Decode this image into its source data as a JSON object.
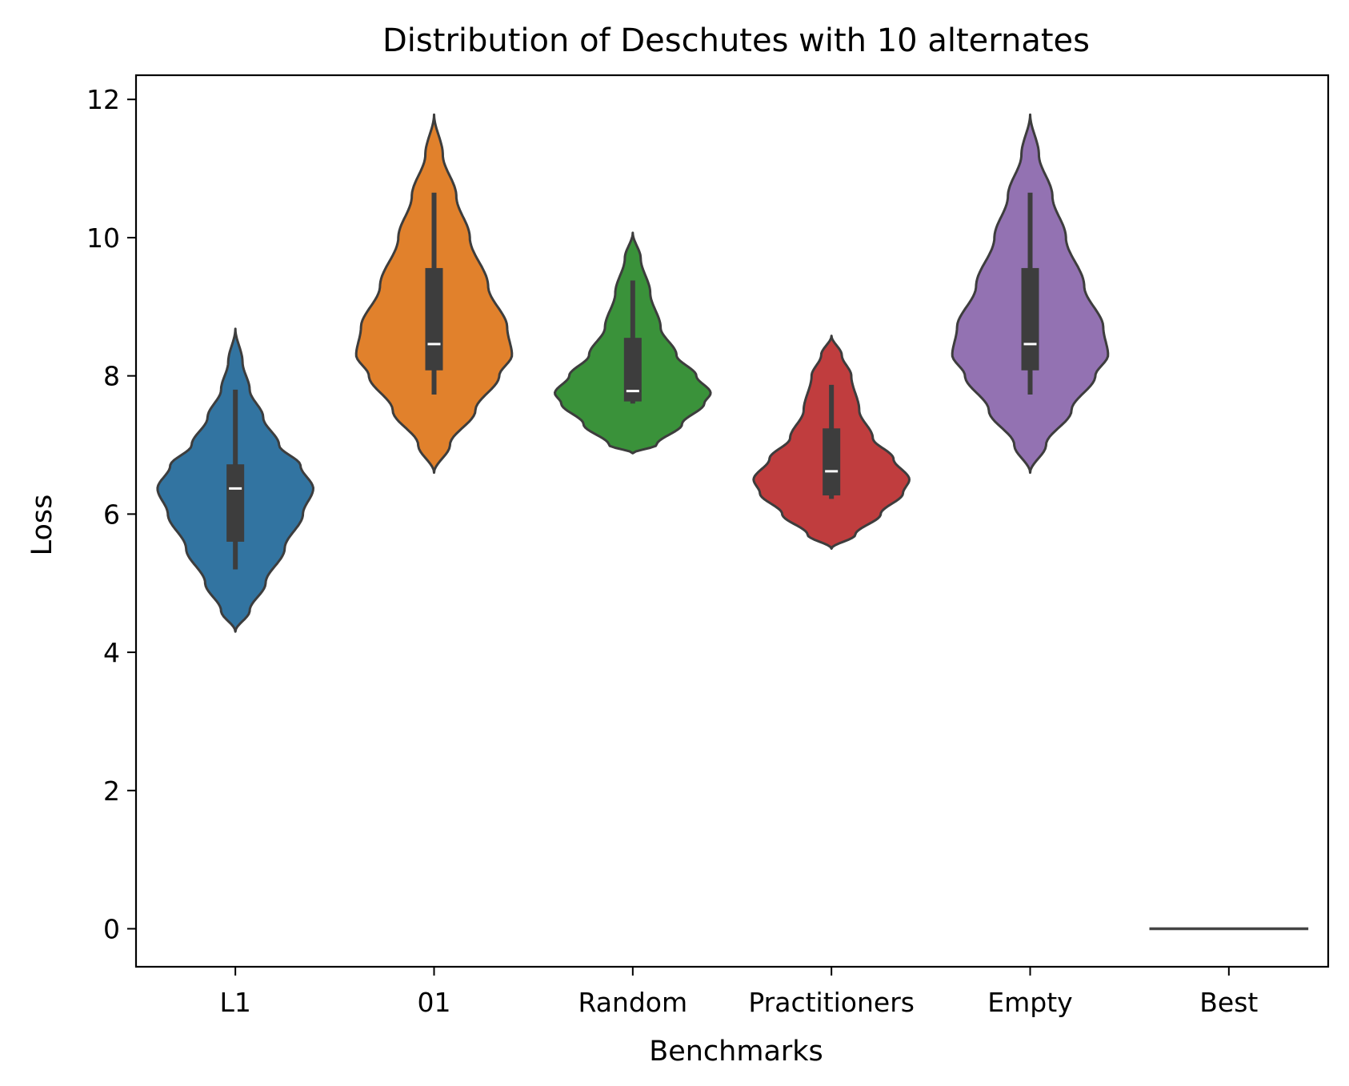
{
  "chart_data": {
    "type": "violin",
    "title": "Distribution of Deschutes with 10 alternates",
    "xlabel": "Benchmarks",
    "ylabel": "Loss",
    "ylim": [
      -0.55,
      12.35
    ],
    "yticks": [
      0,
      2,
      4,
      6,
      8,
      10,
      12
    ],
    "ytick_labels": [
      "0",
      "2",
      "4",
      "6",
      "8",
      "10",
      "12"
    ],
    "grid": false,
    "categories": [
      "L1",
      "01",
      "Random",
      "Practitioners",
      "Empty",
      "Best"
    ],
    "series": [
      {
        "category": "L1",
        "color": "#3274a1",
        "min": 5.2,
        "q1": 5.6,
        "median": 6.37,
        "q3": 6.72,
        "max": 7.8,
        "kde_range": [
          4.3,
          8.68
        ],
        "density": [
          [
            4.3,
            0.0
          ],
          [
            4.6,
            0.18
          ],
          [
            5.0,
            0.38
          ],
          [
            5.5,
            0.62
          ],
          [
            6.0,
            0.85
          ],
          [
            6.37,
            0.98
          ],
          [
            6.7,
            0.82
          ],
          [
            7.0,
            0.55
          ],
          [
            7.4,
            0.35
          ],
          [
            7.8,
            0.18
          ],
          [
            8.2,
            0.09
          ],
          [
            8.68,
            0.0
          ]
        ]
      },
      {
        "category": "01",
        "color": "#e1812c",
        "min": 7.73,
        "q1": 8.08,
        "median": 8.46,
        "q3": 9.56,
        "max": 10.65,
        "kde_range": [
          6.6,
          11.78
        ],
        "density": [
          [
            6.6,
            0.0
          ],
          [
            7.0,
            0.2
          ],
          [
            7.5,
            0.52
          ],
          [
            8.0,
            0.82
          ],
          [
            8.3,
            0.98
          ],
          [
            8.7,
            0.92
          ],
          [
            9.3,
            0.68
          ],
          [
            10.0,
            0.45
          ],
          [
            10.6,
            0.28
          ],
          [
            11.2,
            0.11
          ],
          [
            11.78,
            0.0
          ]
        ]
      },
      {
        "category": "Random",
        "color": "#3a923a",
        "min": 7.6,
        "q1": 7.63,
        "median": 7.78,
        "q3": 8.55,
        "max": 9.38,
        "kde_range": [
          6.88,
          10.07
        ],
        "density": [
          [
            6.88,
            0.0
          ],
          [
            7.0,
            0.3
          ],
          [
            7.3,
            0.62
          ],
          [
            7.6,
            0.9
          ],
          [
            7.75,
            0.98
          ],
          [
            8.0,
            0.8
          ],
          [
            8.3,
            0.55
          ],
          [
            8.7,
            0.35
          ],
          [
            9.2,
            0.22
          ],
          [
            9.7,
            0.1
          ],
          [
            10.07,
            0.0
          ]
        ]
      },
      {
        "category": "Practitioners",
        "color": "#c03d3e",
        "min": 6.22,
        "q1": 6.27,
        "median": 6.62,
        "q3": 7.24,
        "max": 7.87,
        "kde_range": [
          5.5,
          8.58
        ],
        "density": [
          [
            5.5,
            0.0
          ],
          [
            5.7,
            0.3
          ],
          [
            6.0,
            0.62
          ],
          [
            6.3,
            0.9
          ],
          [
            6.5,
            0.98
          ],
          [
            6.8,
            0.78
          ],
          [
            7.1,
            0.52
          ],
          [
            7.5,
            0.35
          ],
          [
            8.0,
            0.25
          ],
          [
            8.3,
            0.13
          ],
          [
            8.58,
            0.0
          ]
        ]
      },
      {
        "category": "Empty",
        "color": "#9372b2",
        "min": 7.73,
        "q1": 8.08,
        "median": 8.46,
        "q3": 9.56,
        "max": 10.65,
        "kde_range": [
          6.6,
          11.78
        ],
        "density": [
          [
            6.6,
            0.0
          ],
          [
            7.0,
            0.2
          ],
          [
            7.5,
            0.52
          ],
          [
            8.0,
            0.82
          ],
          [
            8.3,
            0.98
          ],
          [
            8.7,
            0.92
          ],
          [
            9.3,
            0.68
          ],
          [
            10.0,
            0.45
          ],
          [
            10.6,
            0.28
          ],
          [
            11.2,
            0.11
          ],
          [
            11.78,
            0.0
          ]
        ]
      },
      {
        "category": "Best",
        "color": "#3d3d3d",
        "min": 0,
        "q1": 0,
        "median": 0,
        "q3": 0,
        "max": 0,
        "kde_range": [
          0,
          0
        ],
        "density": []
      }
    ]
  }
}
